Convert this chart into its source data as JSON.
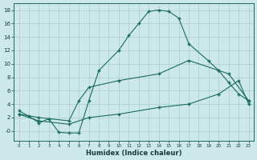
{
  "xlabel": "Humidex (Indice chaleur)",
  "xlim": [
    -0.5,
    23.5
  ],
  "ylim": [
    -1.5,
    19.0
  ],
  "bg_color": "#cce8e8",
  "grid_color": "#aacccc",
  "line_color": "#1a6b5a",
  "line1_x": [
    0,
    1,
    2,
    3,
    4,
    5,
    6,
    7,
    8,
    10,
    11,
    12,
    13,
    14,
    15,
    16,
    17,
    19,
    20,
    21,
    22,
    23
  ],
  "line1_y": [
    3.0,
    2.2,
    1.2,
    1.8,
    -0.2,
    -0.3,
    -0.3,
    4.5,
    9.0,
    12.0,
    14.2,
    16.0,
    17.8,
    18.0,
    17.8,
    16.8,
    13.0,
    10.4,
    9.0,
    7.2,
    5.5,
    4.5
  ],
  "line2_x": [
    0,
    2,
    5,
    6,
    7,
    10,
    14,
    17,
    20,
    21,
    23
  ],
  "line2_y": [
    2.5,
    2.0,
    1.5,
    4.5,
    6.5,
    7.5,
    8.5,
    10.5,
    9.0,
    8.5,
    4.5
  ],
  "line3_x": [
    0,
    2,
    5,
    7,
    10,
    14,
    17,
    20,
    22,
    23
  ],
  "line3_y": [
    2.5,
    1.5,
    1.0,
    2.0,
    2.5,
    3.5,
    4.0,
    5.5,
    7.5,
    4.0
  ],
  "xticks": [
    0,
    1,
    2,
    3,
    4,
    5,
    6,
    7,
    8,
    9,
    10,
    11,
    12,
    13,
    14,
    15,
    16,
    17,
    18,
    19,
    20,
    21,
    22,
    23
  ],
  "yticks": [
    0,
    2,
    4,
    6,
    8,
    10,
    12,
    14,
    16,
    18
  ],
  "ytick_labels": [
    "-0",
    "2",
    "4",
    "6",
    "8",
    "10",
    "12",
    "14",
    "16",
    "18"
  ]
}
